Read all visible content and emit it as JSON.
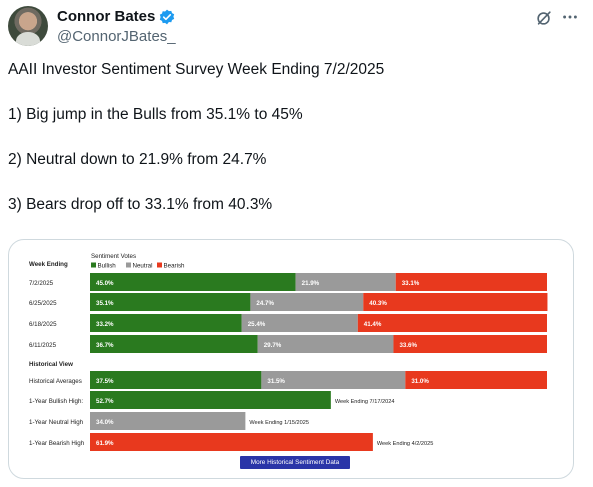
{
  "author": {
    "name": "Connor Bates",
    "handle": "@ConnorJBates_",
    "verified_color": "#1d9bf0"
  },
  "icons": {
    "grok": "grok-icon",
    "more": "more-icon",
    "verified": "verified-badge-icon"
  },
  "tweet": {
    "lines": [
      "AAII Investor Sentiment Survey Week Ending 7/2/2025",
      "1) Big jump in the Bulls from 35.1% to 45%",
      "2) Neutral down to 21.9% from 24.7%",
      "3) Bears drop off to 33.1% from 40.3%"
    ]
  },
  "colors": {
    "bullish": "#2a7a1f",
    "neutral": "#9a9a9a",
    "bearish": "#e8391e",
    "button": "#2a35a8"
  },
  "chart_data": {
    "type": "bar",
    "stacked": true,
    "orientation": "horizontal",
    "title": "Sentiment Votes",
    "week_header": "Week Ending",
    "history_header": "Historical View",
    "legend": [
      "Bullish",
      "Neutral",
      "Bearish"
    ],
    "weeks": [
      {
        "label": "7/2/2025",
        "bullish": 45.0,
        "neutral": 21.9,
        "bearish": 33.1,
        "labels": [
          "45.0%",
          "21.9%",
          "33.1%"
        ]
      },
      {
        "label": "6/25/2025",
        "bullish": 35.1,
        "neutral": 24.7,
        "bearish": 40.3,
        "labels": [
          "35.1%",
          "24.7%",
          "40.3%"
        ]
      },
      {
        "label": "6/18/2025",
        "bullish": 33.2,
        "neutral": 25.4,
        "bearish": 41.4,
        "labels": [
          "33.2%",
          "25.4%",
          "41.4%"
        ]
      },
      {
        "label": "6/11/2025",
        "bullish": 36.7,
        "neutral": 29.7,
        "bearish": 33.6,
        "labels": [
          "36.7%",
          "29.7%",
          "33.6%"
        ]
      }
    ],
    "historical_average": {
      "label": "Historical Averages",
      "bullish": 37.5,
      "neutral": 31.5,
      "bearish": 31.0,
      "labels": [
        "37.5%",
        "31.5%",
        "31.0%"
      ]
    },
    "highs": [
      {
        "label": "1-Year Bullish High:",
        "series": "bullish",
        "value": 52.7,
        "value_label": "52.7%",
        "note": "Week Ending 7/17/2024"
      },
      {
        "label": "1-Year Neutral High",
        "series": "neutral",
        "value": 34.0,
        "value_label": "34.0%",
        "note": "Week Ending 1/15/2025"
      },
      {
        "label": "1-Year Bearish High",
        "series": "bearish",
        "value": 61.9,
        "value_label": "61.9%",
        "note": "Week Ending 4/2/2025"
      }
    ],
    "button_label": "More Historical Sentiment Data"
  }
}
